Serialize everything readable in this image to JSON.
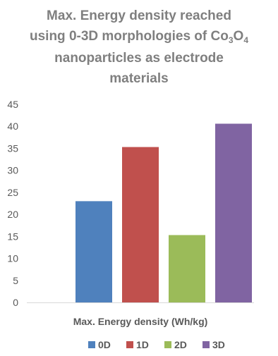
{
  "chart_data": {
    "type": "bar",
    "title_parts": [
      {
        "text": "Max. Energy density reached\nusing 0-3D morphologies of Co",
        "sub": false
      },
      {
        "text": "3",
        "sub": true
      },
      {
        "text": "O",
        "sub": false
      },
      {
        "text": "4",
        "sub": true
      },
      {
        "text": "\nnanoparticles as electrode\nmaterials",
        "sub": false
      }
    ],
    "categories": [
      "Max. Energy density (Wh/kg)"
    ],
    "xlabel": "Max. Energy density (Wh/kg)",
    "ylabel": "",
    "ylim": [
      0,
      45
    ],
    "yticks": [
      0,
      5,
      10,
      15,
      20,
      25,
      30,
      35,
      40,
      45
    ],
    "grid": false,
    "legend_position": "bottom",
    "series": [
      {
        "name": "0D",
        "values": [
          23
        ],
        "color": "#4f81bd"
      },
      {
        "name": "1D",
        "values": [
          35.3
        ],
        "color": "#c0504d"
      },
      {
        "name": "2D",
        "values": [
          15.3
        ],
        "color": "#9bbb59"
      },
      {
        "name": "3D",
        "values": [
          40.6
        ],
        "color": "#8064a2"
      }
    ]
  }
}
